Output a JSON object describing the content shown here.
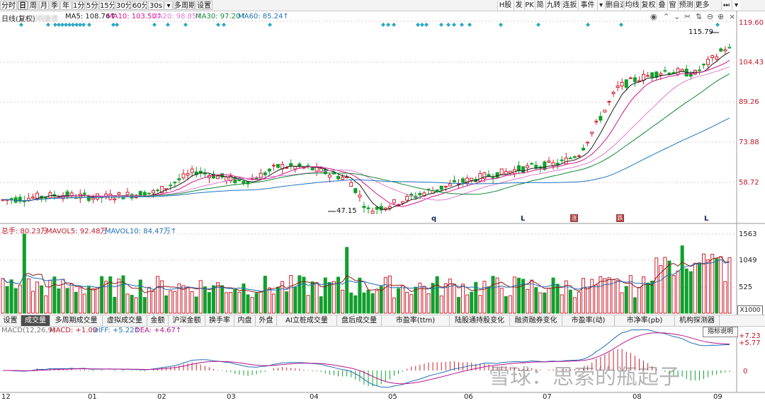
{
  "toolbar": {
    "left_buttons": [
      "分时",
      "日",
      "周",
      "月",
      "季",
      "年",
      "1分",
      "5分",
      "15分",
      "30分",
      "60分",
      "30s",
      "▾",
      "多周期",
      "设置"
    ],
    "active": "日",
    "right_buttons": [
      "H股",
      "发",
      "PK",
      "简",
      "九转",
      "连扳",
      "事件",
      "▾",
      "删自选",
      "均线",
      "复权",
      "叠",
      "窗",
      "预测",
      "更多"
    ]
  },
  "price_panel": {
    "title": "日线(复权)",
    "stock_name_blurred": "药明康德",
    "ma": [
      {
        "label": "MA5: 108.76↑",
        "color": "#1a1a1a"
      },
      {
        "label": "MA10: 103.50↑",
        "color": "#d4148a"
      },
      {
        "label": "MA20: 98.85↑",
        "color": "#e07ad0"
      },
      {
        "label": "MA30: 97.20↑",
        "color": "#118833"
      },
      {
        "label": "MA60: 85.24↑",
        "color": "#1e73be"
      }
    ],
    "y_ticks": [
      "119.60",
      "104.43",
      "89.26",
      "73.88",
      "58.72"
    ],
    "high_label": "115.79",
    "low_label": "47.15",
    "markers": [
      "q",
      "L",
      "L"
    ],
    "event_markers": [
      "涨",
      "跌"
    ]
  },
  "volume_panel": {
    "header": [
      {
        "label": "总手: 80.23万",
        "color": "#c0182b"
      },
      {
        "label": "MAVOL5: 92.48万",
        "color": "#c0182b"
      },
      {
        "label": "MAVOL10: 84.47万↑",
        "color": "#1f6fb5"
      }
    ],
    "y_ticks": [
      "1563",
      "1049",
      "525"
    ],
    "unit": "X1000"
  },
  "indicator_tabs": [
    "设置",
    "成交量",
    "多周期成交量",
    "虚拟成交量",
    "金额",
    "沪深金额",
    "换手率",
    "内盘",
    "外盘",
    "AI立桩成交量",
    "盘后成交量",
    "市盈率(ttm)",
    "陆股通持股变化",
    "融资融券变化",
    "市盈率(动)",
    "市净率(pb)",
    "机构探测器"
  ],
  "active_tab": "成交量",
  "macd_panel": {
    "header": [
      {
        "label": "MACD(12,26,9)",
        "color": "#777777"
      },
      {
        "label": "MACD: +1.09",
        "color": "#c0182b"
      },
      {
        "label": "DIFF: +5.22↑",
        "color": "#1f6fb5"
      },
      {
        "label": "DEA: +4.67↑",
        "color": "#b5128d"
      }
    ],
    "y_ticks": [
      "+7.23",
      "+5.77",
      "0"
    ],
    "explain_button": "指标说明"
  },
  "x_axis_labels": [
    "12",
    "01",
    "02",
    "03",
    "04",
    "05",
    "06",
    "07",
    "08",
    "09"
  ],
  "watermark": "雪球：思索的瓶起子",
  "colors": {
    "up": "#d0202e",
    "down": "#119f2c",
    "ma5": "#1a1a1a",
    "ma10": "#d4148a",
    "ma20": "#e07ad0",
    "ma30": "#118833",
    "ma60": "#1e73be",
    "diamond": "#2aa8c5"
  }
}
